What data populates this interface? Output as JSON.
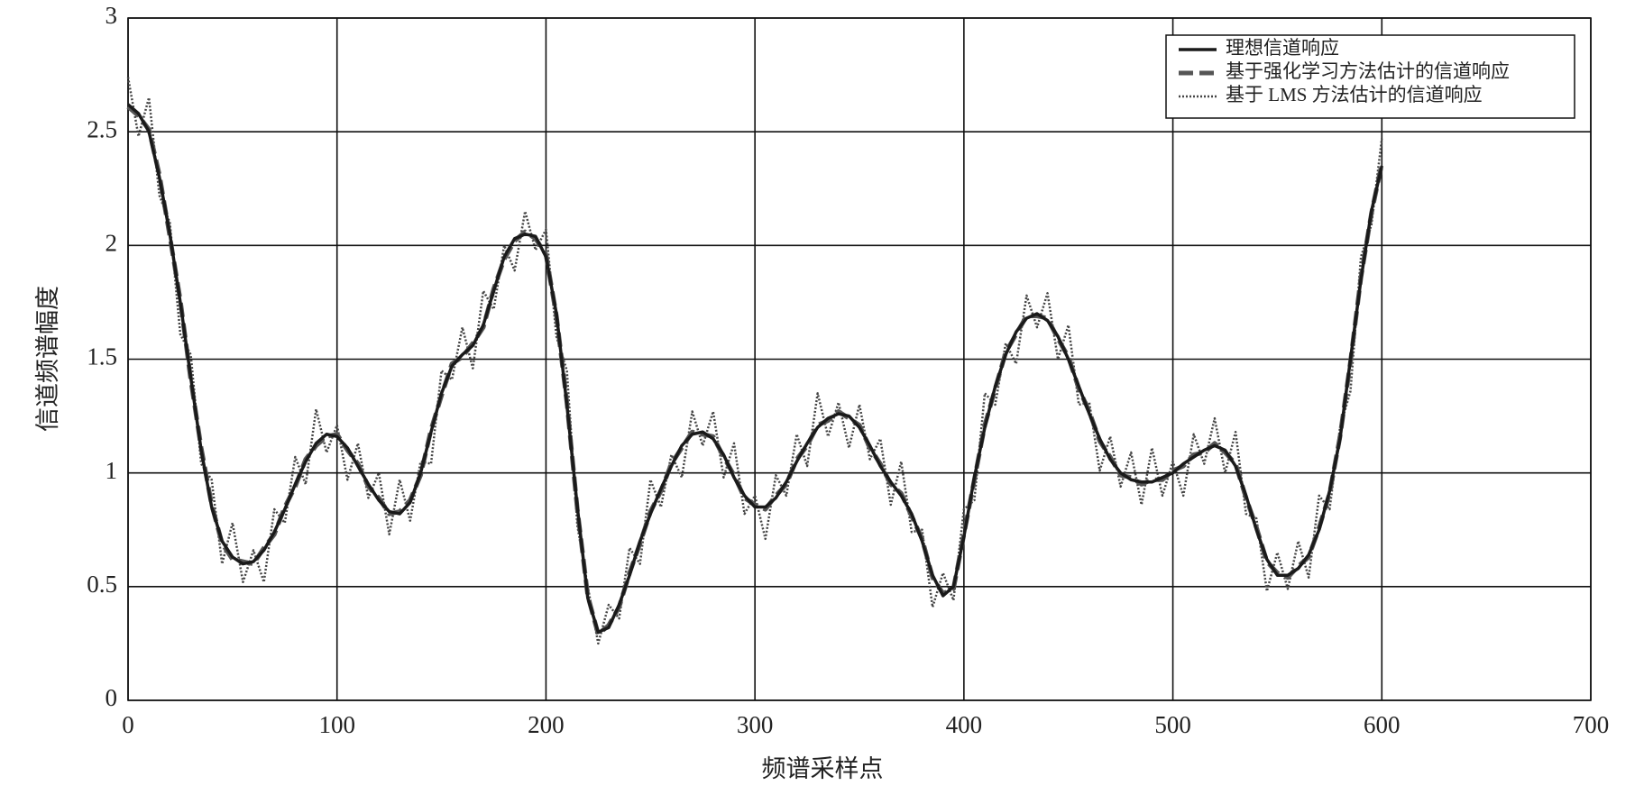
{
  "chart_data": {
    "type": "line",
    "xlabel": "频谱采样点",
    "ylabel": "信道频谱幅度",
    "xlim": [
      0,
      700
    ],
    "xticks": [
      0,
      100,
      200,
      300,
      400,
      500,
      600,
      700
    ],
    "ylim": [
      0,
      3
    ],
    "yticks": [
      0,
      0.5,
      1,
      1.5,
      2,
      2.5,
      3
    ],
    "grid": true,
    "legend": "upper right",
    "x": [
      0,
      5,
      10,
      15,
      20,
      25,
      30,
      35,
      40,
      45,
      50,
      55,
      60,
      65,
      70,
      75,
      80,
      85,
      90,
      95,
      100,
      105,
      110,
      115,
      120,
      125,
      130,
      135,
      140,
      145,
      150,
      155,
      160,
      165,
      170,
      175,
      180,
      185,
      190,
      195,
      200,
      205,
      210,
      215,
      220,
      225,
      230,
      235,
      240,
      245,
      250,
      255,
      260,
      265,
      270,
      275,
      280,
      285,
      290,
      295,
      300,
      305,
      310,
      315,
      320,
      325,
      330,
      335,
      340,
      345,
      350,
      355,
      360,
      365,
      370,
      375,
      380,
      385,
      390,
      395,
      400,
      405,
      410,
      415,
      420,
      425,
      430,
      435,
      440,
      445,
      450,
      455,
      460,
      465,
      470,
      475,
      480,
      485,
      490,
      495,
      500,
      505,
      510,
      515,
      520,
      525,
      530,
      535,
      540,
      545,
      550,
      555,
      560,
      565,
      570,
      575,
      580,
      585,
      590,
      595,
      600
    ],
    "series": [
      {
        "name": "理想信道响应",
        "color": "#1a1a1a",
        "style": "solid",
        "values": [
          2.62,
          2.58,
          2.5,
          2.3,
          2.05,
          1.75,
          1.42,
          1.1,
          0.85,
          0.7,
          0.63,
          0.6,
          0.61,
          0.66,
          0.74,
          0.84,
          0.95,
          1.05,
          1.13,
          1.17,
          1.16,
          1.11,
          1.03,
          0.95,
          0.88,
          0.83,
          0.82,
          0.87,
          1.0,
          1.18,
          1.35,
          1.47,
          1.52,
          1.56,
          1.65,
          1.8,
          1.95,
          2.03,
          2.05,
          2.04,
          1.95,
          1.7,
          1.3,
          0.85,
          0.45,
          0.3,
          0.32,
          0.42,
          0.55,
          0.7,
          0.82,
          0.93,
          1.03,
          1.12,
          1.17,
          1.18,
          1.15,
          1.08,
          0.98,
          0.9,
          0.85,
          0.85,
          0.89,
          0.96,
          1.05,
          1.13,
          1.2,
          1.24,
          1.26,
          1.25,
          1.2,
          1.12,
          1.03,
          0.96,
          0.9,
          0.82,
          0.7,
          0.55,
          0.46,
          0.5,
          0.72,
          0.98,
          1.2,
          1.38,
          1.52,
          1.62,
          1.68,
          1.7,
          1.67,
          1.6,
          1.5,
          1.38,
          1.26,
          1.15,
          1.06,
          1.0,
          0.97,
          0.96,
          0.96,
          0.98,
          1.0,
          1.04,
          1.07,
          1.1,
          1.12,
          1.1,
          1.03,
          0.9,
          0.75,
          0.62,
          0.55,
          0.55,
          0.58,
          0.64,
          0.75,
          0.92,
          1.15,
          1.5,
          1.85,
          2.15,
          2.35
        ]
      },
      {
        "name": "基于强化学习方法估计的信道响应",
        "color": "#555555",
        "style": "dashed",
        "values": [
          2.61,
          2.57,
          2.51,
          2.31,
          2.04,
          1.76,
          1.41,
          1.11,
          0.86,
          0.69,
          0.62,
          0.61,
          0.6,
          0.67,
          0.73,
          0.85,
          0.94,
          1.06,
          1.12,
          1.16,
          1.17,
          1.1,
          1.04,
          0.94,
          0.89,
          0.82,
          0.83,
          0.88,
          0.99,
          1.19,
          1.34,
          1.48,
          1.51,
          1.57,
          1.64,
          1.81,
          1.94,
          2.02,
          2.06,
          2.03,
          1.96,
          1.69,
          1.31,
          0.84,
          0.46,
          0.29,
          0.33,
          0.41,
          0.56,
          0.69,
          0.83,
          0.92,
          1.04,
          1.11,
          1.18,
          1.17,
          1.16,
          1.07,
          0.99,
          0.89,
          0.86,
          0.84,
          0.9,
          0.95,
          1.06,
          1.12,
          1.21,
          1.23,
          1.27,
          1.24,
          1.21,
          1.11,
          1.04,
          0.95,
          0.91,
          0.81,
          0.71,
          0.54,
          0.47,
          0.49,
          0.73,
          0.97,
          1.21,
          1.37,
          1.53,
          1.61,
          1.69,
          1.69,
          1.68,
          1.59,
          1.51,
          1.37,
          1.27,
          1.14,
          1.07,
          0.99,
          0.98,
          0.95,
          0.97,
          0.97,
          1.01,
          1.03,
          1.08,
          1.09,
          1.13,
          1.09,
          1.04,
          0.89,
          0.76,
          0.61,
          0.56,
          0.54,
          0.59,
          0.63,
          0.76,
          0.91,
          1.16,
          1.49,
          1.86,
          2.14,
          2.36
        ]
      },
      {
        "name": "基于 LMS 方法估计的信道响应",
        "color": "#444444",
        "style": "dotted",
        "values": [
          2.74,
          2.48,
          2.65,
          2.22,
          2.1,
          1.61,
          1.52,
          1.04,
          0.97,
          0.6,
          0.78,
          0.52,
          0.66,
          0.52,
          0.84,
          0.78,
          1.07,
          0.95,
          1.28,
          1.09,
          1.21,
          0.97,
          1.13,
          0.89,
          1.0,
          0.73,
          0.97,
          0.79,
          1.05,
          1.04,
          1.45,
          1.41,
          1.64,
          1.46,
          1.8,
          1.72,
          2.0,
          1.89,
          2.15,
          1.98,
          2.07,
          1.6,
          1.45,
          0.77,
          0.5,
          0.25,
          0.42,
          0.36,
          0.67,
          0.6,
          0.97,
          0.85,
          1.08,
          0.98,
          1.27,
          1.12,
          1.27,
          0.98,
          1.13,
          0.82,
          0.9,
          0.71,
          0.99,
          0.9,
          1.17,
          1.03,
          1.35,
          1.16,
          1.31,
          1.11,
          1.3,
          1.06,
          1.15,
          0.86,
          1.05,
          0.74,
          0.75,
          0.41,
          0.56,
          0.44,
          0.84,
          0.88,
          1.35,
          1.3,
          1.57,
          1.48,
          1.78,
          1.64,
          1.79,
          1.5,
          1.65,
          1.3,
          1.31,
          1.01,
          1.16,
          0.94,
          1.09,
          0.86,
          1.11,
          0.9,
          1.05,
          0.9,
          1.17,
          1.04,
          1.24,
          1.0,
          1.18,
          0.82,
          0.8,
          0.48,
          0.65,
          0.49,
          0.7,
          0.54,
          0.9,
          0.84,
          1.2,
          1.36,
          1.95,
          2.09,
          2.47
        ]
      }
    ]
  }
}
